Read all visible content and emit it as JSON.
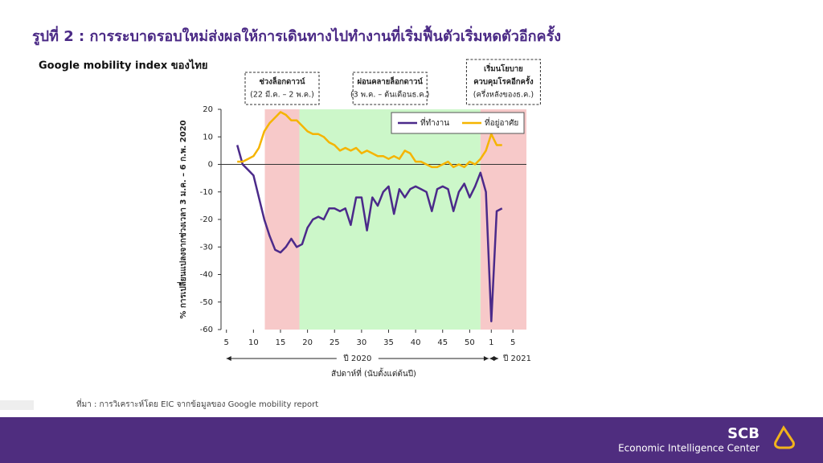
{
  "header": {
    "title": "รูปที่ 2 : การระบาดรอบใหม่ส่งผลให้การเดินทางไปทำงานที่เริ่มฟื้นตัวเริ่มหดตัวอีกครั้ง",
    "subtitle": "Google mobility index ของไทย"
  },
  "chart_data": {
    "type": "line",
    "y_label": "% การเปลี่ยนแปลงจากช่วงเวลา 3 ม.ค. – 6 ก.พ. 2020",
    "x_label": "สัปดาห์ที่ (นับตั้งแต่ต้นปี)",
    "x": [
      7,
      8,
      9,
      10,
      11,
      12,
      13,
      14,
      15,
      16,
      17,
      18,
      19,
      20,
      21,
      22,
      23,
      24,
      25,
      26,
      27,
      28,
      29,
      30,
      31,
      32,
      33,
      34,
      35,
      36,
      37,
      38,
      39,
      40,
      41,
      42,
      43,
      44,
      45,
      46,
      47,
      48,
      49,
      50,
      51,
      52,
      53,
      54,
      55,
      56
    ],
    "series": [
      {
        "name": "ที่ทำงาน",
        "color": "#4b2a8a",
        "values": [
          7,
          0,
          -2,
          -4,
          -12,
          -20,
          -26,
          -31,
          -32,
          -30,
          -27,
          -30,
          -29,
          -23,
          -20,
          -19,
          -20,
          -16,
          -16,
          -17,
          -16,
          -22,
          -12,
          -12,
          -24,
          -12,
          -15,
          -10,
          -8,
          -18,
          -9,
          -12,
          -9,
          -8,
          -9,
          -10,
          -17,
          -9,
          -8,
          -9,
          -17,
          -10,
          -7,
          -12,
          -8,
          -3,
          -10,
          -57,
          -17,
          -16
        ]
      },
      {
        "name": "ที่อยู่อาศัย",
        "color": "#f5b400",
        "values": [
          1,
          1,
          2,
          3,
          6,
          12,
          15,
          17,
          19,
          18,
          16,
          16,
          14,
          12,
          11,
          11,
          10,
          8,
          7,
          5,
          6,
          5,
          6,
          4,
          5,
          4,
          3,
          3,
          2,
          3,
          2,
          5,
          4,
          1,
          1,
          0,
          -1,
          -1,
          0,
          1,
          -1,
          0,
          -1,
          1,
          0,
          2,
          5,
          11,
          7,
          7
        ]
      }
    ],
    "xlim": [
      4,
      60.5
    ],
    "xticks": [
      5,
      10,
      15,
      20,
      25,
      30,
      35,
      40,
      45,
      50,
      {
        "value": 54,
        "label": "1"
      },
      {
        "value": 58,
        "label": "5"
      }
    ],
    "ylim": [
      -60,
      20
    ],
    "yticks": [
      20,
      10,
      0,
      -10,
      -20,
      -30,
      -40,
      -50,
      -60
    ],
    "legend": "upper right",
    "shaded_regions": [
      {
        "start": 12.1,
        "end": 18.5,
        "color": "#f7c9c9"
      },
      {
        "start": 18.5,
        "end": 52,
        "color": "#ccf7c9"
      },
      {
        "start": 52,
        "end": 60.5,
        "color": "#f7c9c9"
      }
    ],
    "annotations": [
      {
        "lines": [
          "ช่วงล็อกดาวน์",
          "(22 มี.ค. – 2 พ.ค.)"
        ]
      },
      {
        "lines": [
          "ผ่อนคลายล็อกดาวน์",
          "(3 พ.ค. – ต้นเดือนธ.ค.)"
        ]
      },
      {
        "lines": [
          "เริ่มนโยบาย",
          "ควบคุมโรคอีกครั้ง",
          "(ครึ่งหลังของธ.ค.)"
        ]
      }
    ],
    "periods": [
      {
        "label": "ปี 2020",
        "start": 5,
        "end": 53.5
      },
      {
        "label": "ปี 2021",
        "start": 53.7,
        "end": 55.3
      }
    ]
  },
  "source": "ที่มา : การวิเคราะห์โดย EIC จากข้อมูลของ Google mobility report",
  "footer": {
    "brand": "SCB",
    "unit": "Economic Intelligence Center"
  }
}
